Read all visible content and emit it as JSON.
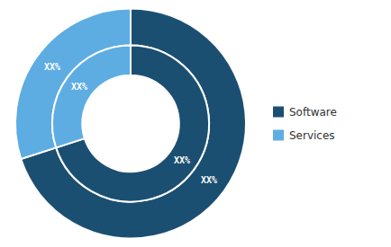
{
  "chart_data": {
    "type": "pie",
    "categories": [
      "Software",
      "Services"
    ],
    "colors": [
      "#1b4f72",
      "#5dade2"
    ],
    "series": [
      {
        "values": [
          70,
          30
        ],
        "value_labels": [
          "XX%",
          "XX%"
        ]
      },
      {
        "values": [
          70,
          30
        ],
        "value_labels": [
          "XX%",
          "XX%"
        ]
      }
    ],
    "data_labels": true,
    "legend": "right"
  }
}
